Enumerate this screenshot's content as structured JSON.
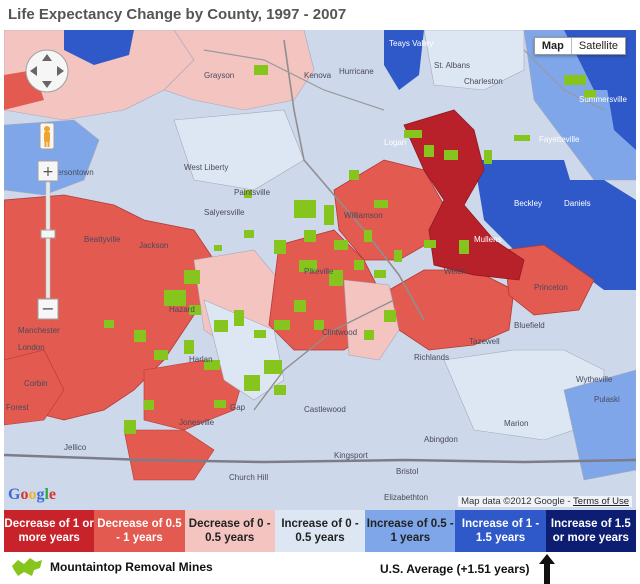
{
  "title": "Life Expectancy Change by County, 1997 - 2007",
  "map_type": {
    "map_label": "Map",
    "satellite_label": "Satellite",
    "selected": "Map"
  },
  "place_labels": {
    "grayson": "Grayson",
    "kenova": "Kenova",
    "hurricane": "Hurricane",
    "charleston": "Charleston",
    "st_albans": "St. Albans",
    "teays_valley": "Teays Valley",
    "summersville": "Summersville",
    "fayetteville": "Fayetteville",
    "beckley": "Beckley",
    "daniels": "Daniels",
    "west_liberty": "West Liberty",
    "jeffersontown": "Jeffersontown",
    "paintsville": "Paintsville",
    "salyersville": "Salyersville",
    "beattyville": "Beattyville",
    "jackson": "Jackson",
    "hazard": "Hazard",
    "pikeville": "Pikeville",
    "welch": "Welch",
    "princeton": "Princeton",
    "bluefield": "Bluefield",
    "williamson": "Williamson",
    "manchester": "Manchester",
    "london": "London",
    "corbin": "Corbin",
    "harlan": "Harlan",
    "clintwood": "Clintwood",
    "tazewell": "Tazewell",
    "richlands": "Richlands",
    "wytheville": "Wytheville",
    "pulaski": "Pulaski",
    "marion": "Marion",
    "abingdon": "Abingdon",
    "castlewood": "Castlewood",
    "kingsport": "Kingsport",
    "bristol": "Bristol",
    "church_hill": "Church Hill",
    "elizabethton": "Elizabethton",
    "forest": "Forest",
    "jellico": "Jellico",
    "logan": "Logan",
    "mullens": "Mullens",
    "gap": "Gap",
    "jonesville": "Jonesville"
  },
  "credits": {
    "map_data": "Map data ©2012 Google - ",
    "terms": "Terms of Use"
  },
  "google_logo": "Google",
  "legend": [
    {
      "label": "Decrease of 1 or more years",
      "color": "#c8232a",
      "text_color": "#ffffff"
    },
    {
      "label": "Decrease of 0.5 - 1 years",
      "color": "#e25a50",
      "text_color": "#ffffff"
    },
    {
      "label": "Decrease of 0 - 0.5 years",
      "color": "#f3c4c0",
      "text_color": "#222222"
    },
    {
      "label": "Increase of 0 - 0.5 years",
      "color": "#dde7f4",
      "text_color": "#222222"
    },
    {
      "label": "Increase of 0.5 - 1 years",
      "color": "#7ea6e8",
      "text_color": "#222222"
    },
    {
      "label": "Increase of 1 - 1.5 years",
      "color": "#2f58c8",
      "text_color": "#ffffff"
    },
    {
      "label": "Increase of 1.5 or more years",
      "color": "#0c1d72",
      "text_color": "#ffffff"
    }
  ],
  "mines_label": "Mountaintop Removal Mines",
  "us_average_label": "U.S. Average (+1.51 years)",
  "colors": {
    "mine_green": "#86c51d",
    "road": "#8f8f8f"
  }
}
